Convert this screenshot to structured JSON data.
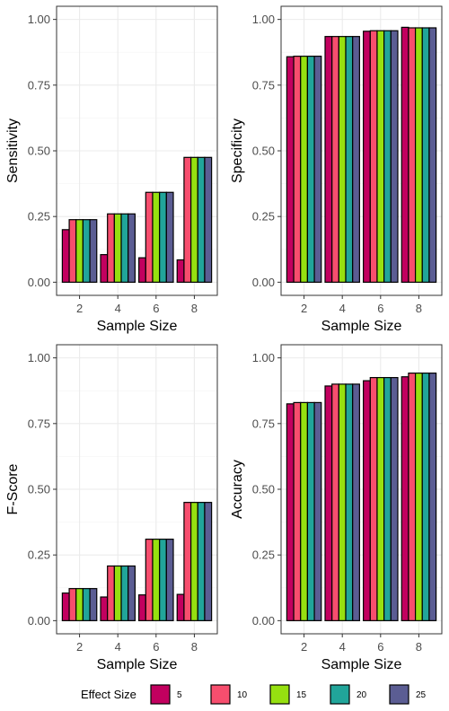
{
  "colors": {
    "effect_sizes": [
      "#C2005F",
      "#F74E6E",
      "#96E010",
      "#21A59A",
      "#5B5D93"
    ]
  },
  "legend": {
    "title": "Effect Size",
    "labels": [
      "5",
      "10",
      "15",
      "20",
      "25"
    ],
    "position": "bottom"
  },
  "chart_data": [
    {
      "type": "bar",
      "categories": [
        "2",
        "4",
        "6",
        "8"
      ],
      "xlabel": "Sample Size",
      "ylabel": "Sensitivity",
      "ylim": [
        0,
        1
      ],
      "yticks": [
        "0.00",
        "0.25",
        "0.50",
        "0.75",
        "1.00"
      ],
      "grid": true,
      "series": [
        {
          "name": "5",
          "values": [
            0.2,
            0.105,
            0.093,
            0.085
          ]
        },
        {
          "name": "10",
          "values": [
            0.238,
            0.26,
            0.342,
            0.475
          ]
        },
        {
          "name": "15",
          "values": [
            0.238,
            0.26,
            0.342,
            0.475
          ]
        },
        {
          "name": "20",
          "values": [
            0.238,
            0.26,
            0.342,
            0.475
          ]
        },
        {
          "name": "25",
          "values": [
            0.238,
            0.26,
            0.342,
            0.475
          ]
        }
      ]
    },
    {
      "type": "bar",
      "categories": [
        "2",
        "4",
        "6",
        "8"
      ],
      "xlabel": "Sample Size",
      "ylabel": "Specificity",
      "ylim": [
        0,
        1
      ],
      "yticks": [
        "0.00",
        "0.25",
        "0.50",
        "0.75",
        "1.00"
      ],
      "grid": true,
      "series": [
        {
          "name": "5",
          "values": [
            0.858,
            0.935,
            0.955,
            0.97
          ]
        },
        {
          "name": "10",
          "values": [
            0.86,
            0.935,
            0.957,
            0.968
          ]
        },
        {
          "name": "15",
          "values": [
            0.86,
            0.935,
            0.957,
            0.968
          ]
        },
        {
          "name": "20",
          "values": [
            0.86,
            0.935,
            0.957,
            0.968
          ]
        },
        {
          "name": "25",
          "values": [
            0.86,
            0.935,
            0.957,
            0.968
          ]
        }
      ]
    },
    {
      "type": "bar",
      "categories": [
        "2",
        "4",
        "6",
        "8"
      ],
      "xlabel": "Sample Size",
      "ylabel": "F-Score",
      "ylim": [
        0,
        1
      ],
      "yticks": [
        "0.00",
        "0.25",
        "0.50",
        "0.75",
        "1.00"
      ],
      "grid": true,
      "series": [
        {
          "name": "5",
          "values": [
            0.105,
            0.09,
            0.098,
            0.1
          ]
        },
        {
          "name": "10",
          "values": [
            0.122,
            0.208,
            0.31,
            0.45
          ]
        },
        {
          "name": "15",
          "values": [
            0.122,
            0.208,
            0.31,
            0.45
          ]
        },
        {
          "name": "20",
          "values": [
            0.122,
            0.208,
            0.31,
            0.45
          ]
        },
        {
          "name": "25",
          "values": [
            0.122,
            0.208,
            0.31,
            0.45
          ]
        }
      ]
    },
    {
      "type": "bar",
      "categories": [
        "2",
        "4",
        "6",
        "8"
      ],
      "xlabel": "Sample Size",
      "ylabel": "Accuracy",
      "ylim": [
        0,
        1
      ],
      "yticks": [
        "0.00",
        "0.25",
        "0.50",
        "0.75",
        "1.00"
      ],
      "grid": true,
      "series": [
        {
          "name": "5",
          "values": [
            0.825,
            0.893,
            0.913,
            0.928
          ]
        },
        {
          "name": "10",
          "values": [
            0.83,
            0.9,
            0.925,
            0.942
          ]
        },
        {
          "name": "15",
          "values": [
            0.83,
            0.9,
            0.925,
            0.942
          ]
        },
        {
          "name": "20",
          "values": [
            0.83,
            0.9,
            0.925,
            0.942
          ]
        },
        {
          "name": "25",
          "values": [
            0.83,
            0.9,
            0.925,
            0.942
          ]
        }
      ]
    }
  ]
}
